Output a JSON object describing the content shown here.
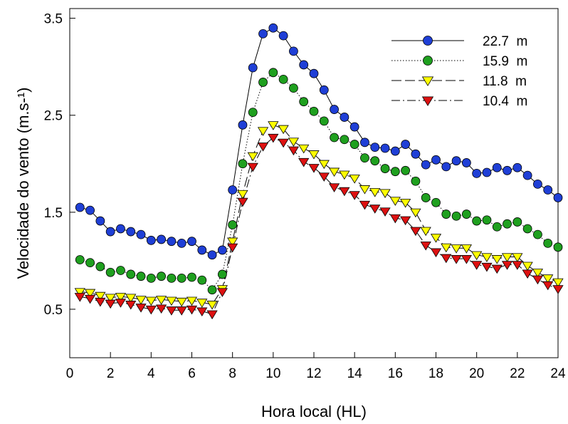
{
  "chart_data": {
    "type": "line",
    "xlabel": "Hora local (HL)",
    "ylabel": "Velocidade do vento (m.s-¹)",
    "xlim": [
      0,
      24
    ],
    "ylim": [
      0,
      3.6
    ],
    "x_ticks": [
      0,
      2,
      4,
      6,
      8,
      10,
      12,
      14,
      16,
      18,
      20,
      22,
      24
    ],
    "y_ticks": [
      0.5,
      1.5,
      2.5,
      3.5
    ],
    "y_tick_labels": [
      "0.5",
      "1.5",
      "2.5",
      "3.5"
    ],
    "grid": false,
    "legend_position": "top-right",
    "x": [
      0.5,
      1,
      1.5,
      2,
      2.5,
      3,
      3.5,
      4,
      4.5,
      5,
      5.5,
      6,
      6.5,
      7,
      7.5,
      8,
      8.5,
      9,
      9.5,
      10,
      10.5,
      11,
      11.5,
      12,
      12.5,
      13,
      13.5,
      14,
      14.5,
      15,
      15.5,
      16,
      16.5,
      17,
      17.5,
      18,
      18.5,
      19,
      19.5,
      20,
      20.5,
      21,
      21.5,
      22,
      22.5,
      23,
      23.5,
      24
    ],
    "series": [
      {
        "name": "22.7  m",
        "marker": "circle",
        "line_style": "solid",
        "color": "#1f3fd6",
        "values": [
          1.55,
          1.52,
          1.41,
          1.3,
          1.33,
          1.3,
          1.27,
          1.21,
          1.22,
          1.2,
          1.18,
          1.2,
          1.11,
          1.06,
          1.11,
          1.73,
          2.4,
          2.99,
          3.34,
          3.4,
          3.32,
          3.16,
          3.02,
          2.93,
          2.76,
          2.56,
          2.48,
          2.38,
          2.22,
          2.17,
          2.16,
          2.13,
          2.2,
          2.1,
          1.99,
          2.04,
          1.97,
          2.03,
          2.01,
          1.9,
          1.91,
          1.96,
          1.93,
          1.96,
          1.88,
          1.79,
          1.73,
          1.65
        ]
      },
      {
        "name": "15.9  m",
        "marker": "circle",
        "line_style": "dotted",
        "color": "#1fa01f",
        "values": [
          1.01,
          0.98,
          0.94,
          0.88,
          0.9,
          0.86,
          0.84,
          0.82,
          0.84,
          0.82,
          0.82,
          0.83,
          0.8,
          0.7,
          0.86,
          1.37,
          2.0,
          2.53,
          2.84,
          2.94,
          2.87,
          2.78,
          2.64,
          2.54,
          2.44,
          2.27,
          2.25,
          2.2,
          2.06,
          2.03,
          1.95,
          1.92,
          1.93,
          1.82,
          1.65,
          1.6,
          1.48,
          1.46,
          1.48,
          1.41,
          1.42,
          1.35,
          1.38,
          1.4,
          1.33,
          1.27,
          1.18,
          1.14
        ]
      },
      {
        "name": "11.8  m",
        "marker": "triangle-down",
        "line_style": "dashed",
        "color": "#ffff00",
        "values": [
          0.68,
          0.67,
          0.64,
          0.62,
          0.63,
          0.62,
          0.6,
          0.59,
          0.6,
          0.59,
          0.58,
          0.59,
          0.57,
          0.55,
          0.71,
          1.2,
          1.69,
          2.08,
          2.34,
          2.4,
          2.36,
          2.23,
          2.16,
          2.1,
          2.0,
          1.92,
          1.89,
          1.85,
          1.74,
          1.71,
          1.7,
          1.62,
          1.6,
          1.5,
          1.31,
          1.24,
          1.14,
          1.13,
          1.13,
          1.06,
          1.04,
          1.02,
          1.04,
          1.04,
          0.95,
          0.88,
          0.82,
          0.78
        ]
      },
      {
        "name": "10.4  m",
        "marker": "triangle-down",
        "line_style": "dash-dot",
        "color": "#dd1111",
        "values": [
          0.63,
          0.61,
          0.58,
          0.56,
          0.57,
          0.55,
          0.52,
          0.5,
          0.51,
          0.49,
          0.49,
          0.5,
          0.48,
          0.45,
          0.68,
          1.14,
          1.61,
          1.97,
          2.18,
          2.27,
          2.22,
          2.14,
          2.02,
          1.96,
          1.87,
          1.76,
          1.72,
          1.68,
          1.58,
          1.54,
          1.51,
          1.44,
          1.42,
          1.31,
          1.16,
          1.09,
          1.03,
          1.02,
          1.02,
          0.96,
          0.94,
          0.92,
          0.96,
          0.96,
          0.87,
          0.81,
          0.75,
          0.71
        ]
      }
    ]
  }
}
